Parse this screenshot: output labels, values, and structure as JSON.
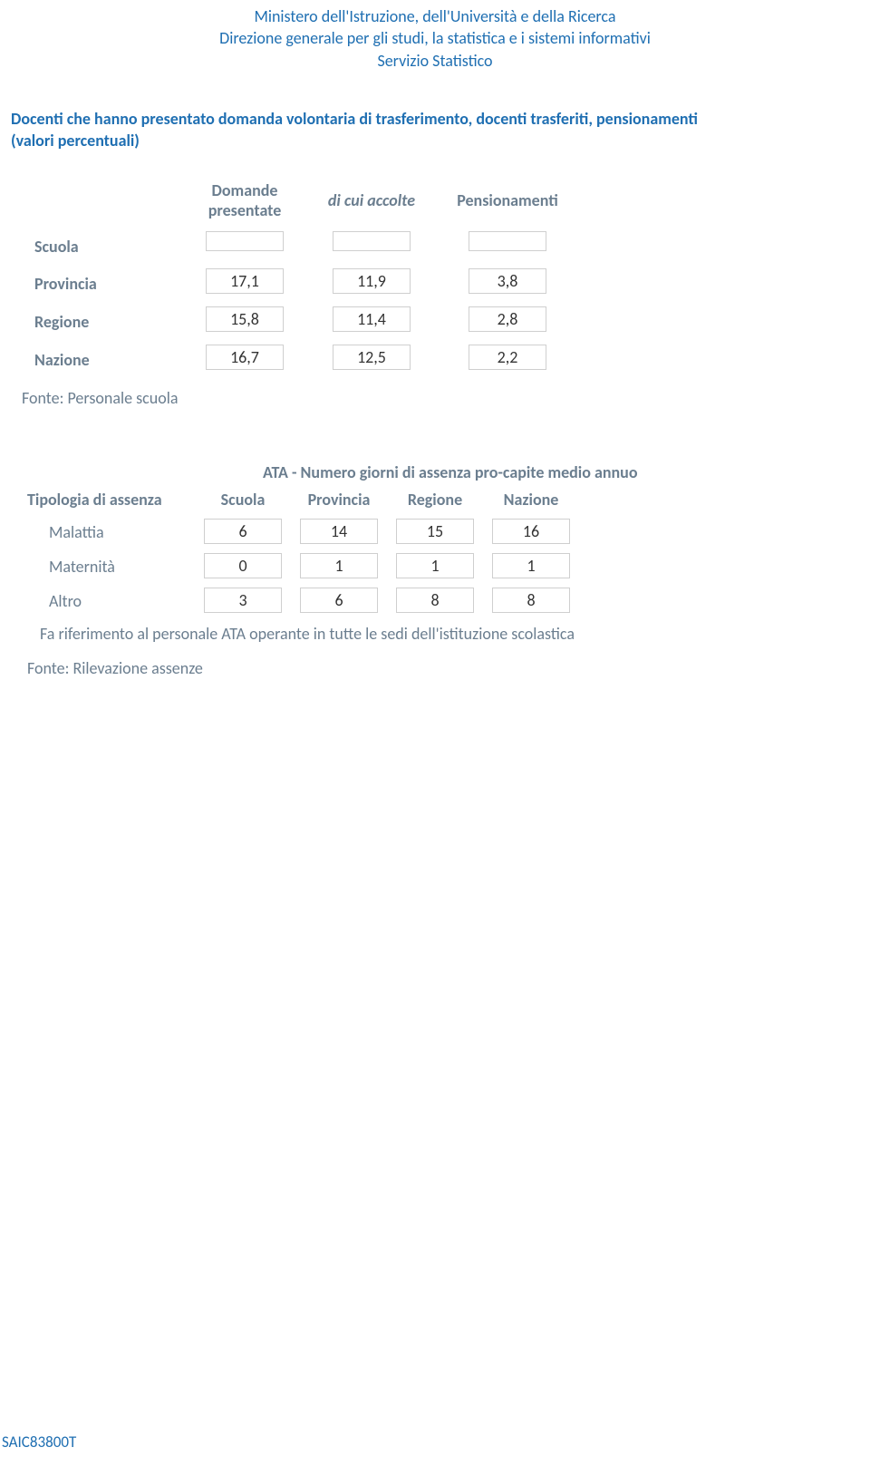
{
  "header": {
    "line1": "Ministero dell'Istruzione, dell'Università e della Ricerca",
    "line2": "Direzione generale per gli studi, la statistica e i sistemi informativi",
    "line3": "Servizio Statistico"
  },
  "section1": {
    "title_line1": "Docenti che hanno presentato domanda volontaria di trasferimento, docenti trasferiti, pensionamenti",
    "title_line2": "(valori percentuali)",
    "columns": {
      "domande_line1": "Domande",
      "domande_line2": "presentate",
      "accolte": "di cui accolte",
      "pensionamenti": "Pensionamenti"
    },
    "rows": [
      {
        "label": "Scuola",
        "domande": "",
        "accolte": "",
        "pensionamenti": ""
      },
      {
        "label": "Provincia",
        "domande": "17,1",
        "accolte": "11,9",
        "pensionamenti": "3,8"
      },
      {
        "label": "Regione",
        "domande": "15,8",
        "accolte": "11,4",
        "pensionamenti": "2,8"
      },
      {
        "label": "Nazione",
        "domande": "16,7",
        "accolte": "12,5",
        "pensionamenti": "2,2"
      }
    ],
    "fonte": "Fonte: Personale scuola"
  },
  "section2": {
    "super_header": "ATA - Numero giorni di assenza pro-capite medio annuo",
    "columns": {
      "tipologia": "Tipologia di assenza",
      "scuola": "Scuola",
      "provincia": "Provincia",
      "regione": "Regione",
      "nazione": "Nazione"
    },
    "rows": [
      {
        "label": "Malattia",
        "scuola": "6",
        "provincia": "14",
        "regione": "15",
        "nazione": "16"
      },
      {
        "label": "Maternità",
        "scuola": "0",
        "provincia": "1",
        "regione": "1",
        "nazione": "1"
      },
      {
        "label": "Altro",
        "scuola": "3",
        "provincia": "6",
        "regione": "8",
        "nazione": "8"
      }
    ],
    "note": "Fa riferimento al personale ATA operante in tutte le sedi dell'istituzione scolastica",
    "fonte": "Fonte: Rilevazione assenze"
  },
  "footer_code": "SAIC83800T",
  "colors": {
    "brand_blue": "#1f6fb2",
    "label_gray": "#6b7e8f",
    "box_border": "#cfcfcf",
    "text": "#333333",
    "background": "#ffffff"
  }
}
